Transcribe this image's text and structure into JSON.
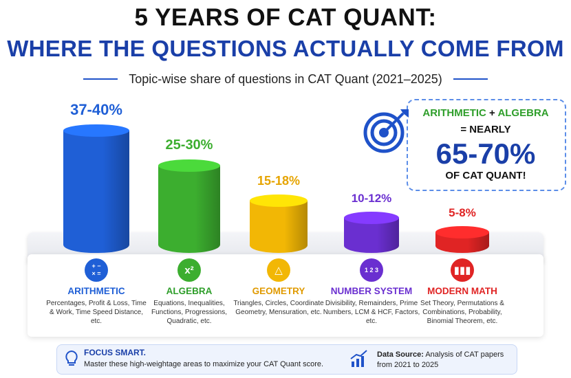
{
  "header": {
    "title_line1": "5 YEARS OF CAT QUANT:",
    "title_line2": "WHERE THE QUESTIONS ACTUALLY COME FROM",
    "subtitle": "Topic-wise share of questions in CAT Quant (2021–2025)"
  },
  "chart_data": {
    "type": "bar",
    "title": "5 YEARS OF CAT QUANT: WHERE THE QUESTIONS ACTUALLY COME FROM",
    "subtitle": "Topic-wise share of questions in CAT Quant (2021–2025)",
    "categories": [
      "ARITHMETIC",
      "ALGEBRA",
      "GEOMETRY",
      "NUMBER SYSTEM",
      "MODERN MATH"
    ],
    "value_labels": [
      "37-40%",
      "25-30%",
      "15-18%",
      "10-12%",
      "5-8%"
    ],
    "value_ranges": [
      [
        37,
        40
      ],
      [
        25,
        30
      ],
      [
        15,
        18
      ],
      [
        10,
        12
      ],
      [
        5,
        8
      ]
    ],
    "units": "%",
    "colors": [
      "#1f5fd6",
      "#3cae2f",
      "#f2b705",
      "#6a2fd0",
      "#e02424"
    ],
    "grid": false
  },
  "categories_info": [
    {
      "name": "ARITHMETIC",
      "icon": "plus-minus-times-equals-icon",
      "icon_glyph": "+ −\n× =",
      "desc": "Percentages, Profit & Loss, Time & Work, Time Speed Distance, etc."
    },
    {
      "name": "ALGEBRA",
      "icon": "x-squared-icon",
      "icon_glyph": "x²",
      "desc": "Equations, Inequalities, Functions, Progressions, Quadratic, etc."
    },
    {
      "name": "GEOMETRY",
      "icon": "triangle-icon",
      "icon_glyph": "△",
      "desc": "Triangles, Circles, Coordinate Geometry, Mensuration, etc."
    },
    {
      "name": "NUMBER SYSTEM",
      "icon": "numbers-123-icon",
      "icon_glyph": "1 2 3",
      "desc": "Divisibility, Remainders, Prime Numbers, LCM & HCF, Factors, etc."
    },
    {
      "name": "MODERN MATH",
      "icon": "bar-chart-icon",
      "icon_glyph": "▮▮▮",
      "desc": "Set Theory, Permutations & Combinations, Probability, Binomial Theorem, etc."
    }
  ],
  "callout": {
    "line1_a": "ARITHMETIC",
    "line1_plus": " + ",
    "line1_b": "ALGEBRA",
    "line2": "= NEARLY",
    "big": "65-70%",
    "line4": "OF CAT QUANT!",
    "icon": "target-arrow-icon"
  },
  "footer": {
    "focus_title": "FOCUS SMART.",
    "focus_text": "Master these high-weightage areas to maximize your CAT Quant score.",
    "ds_label": "Data Source:",
    "ds_text1": "Analysis of CAT papers",
    "ds_text2": "from 2021 to 2025",
    "bulb_icon": "lightbulb-icon",
    "growth_icon": "growth-chart-icon"
  }
}
